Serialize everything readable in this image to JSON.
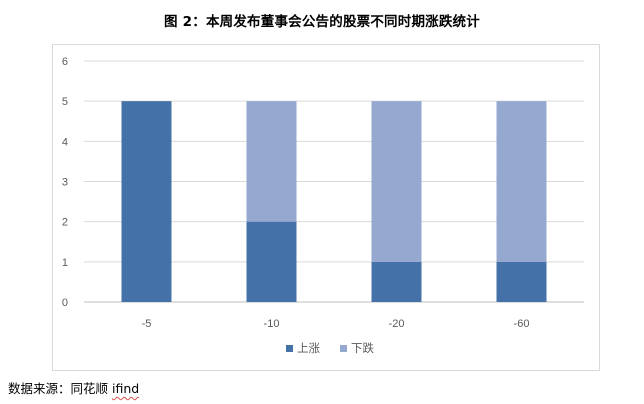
{
  "title": "图 2：本周发布董事会公告的股票不同时期涨跌统计",
  "source": {
    "prefix": "数据来源：同花顺 ",
    "brand": "ifind"
  },
  "chart_data": {
    "type": "bar",
    "stacked": true,
    "categories": [
      "-5",
      "-10",
      "-20",
      "-60"
    ],
    "series": [
      {
        "name": "上涨",
        "values": [
          5,
          2,
          1,
          1
        ],
        "color": "#4472a8"
      },
      {
        "name": "下跌",
        "values": [
          0,
          3,
          4,
          4
        ],
        "color": "#95a9d0"
      }
    ],
    "ylim": [
      0,
      6
    ],
    "yticks": [
      "0",
      "1",
      "2",
      "3",
      "4",
      "5",
      "6"
    ],
    "grid": true,
    "legend": "bottom-center"
  }
}
